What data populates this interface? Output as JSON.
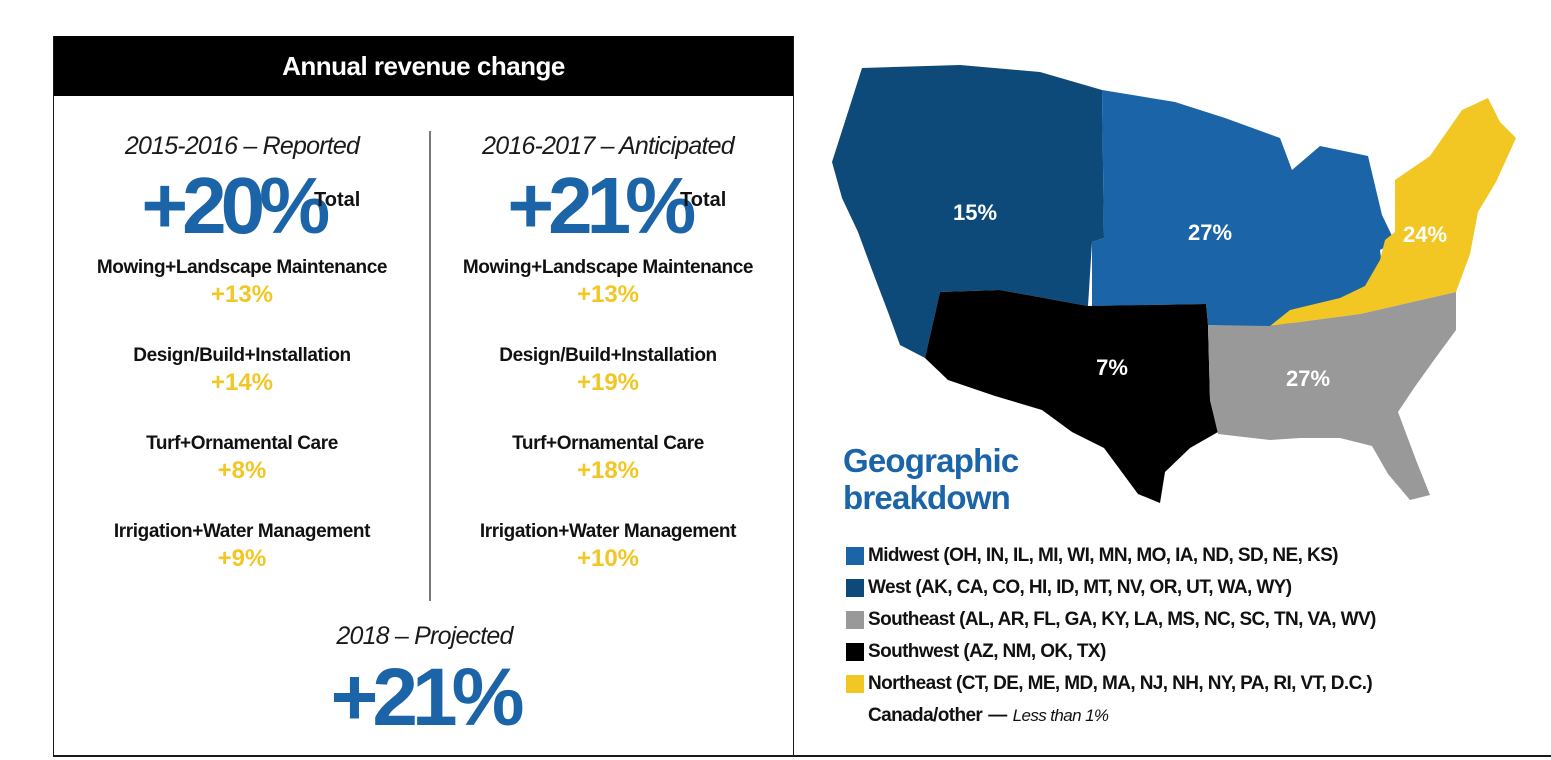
{
  "revenue_panel": {
    "title": "Annual revenue change",
    "reported": {
      "period": "2015-2016 – Reported",
      "total_value": "+20%",
      "total_label": "Total",
      "categories": [
        {
          "name": "Mowing+Landscape Maintenance",
          "value": "+13%"
        },
        {
          "name": "Design/Build+Installation",
          "value": "+14%"
        },
        {
          "name": "Turf+Ornamental Care",
          "value": "+8%"
        },
        {
          "name": "Irrigation+Water Management",
          "value": "+9%"
        }
      ]
    },
    "anticipated": {
      "period": "2016-2017 – Anticipated",
      "total_value": "+21%",
      "total_label": "Total",
      "categories": [
        {
          "name": "Mowing+Landscape Maintenance",
          "value": "+13%"
        },
        {
          "name": "Design/Build+Installation",
          "value": "+19%"
        },
        {
          "name": "Turf+Ornamental Care",
          "value": "+18%"
        },
        {
          "name": "Irrigation+Water Management",
          "value": "+10%"
        }
      ]
    },
    "projected": {
      "period": "2018 – Projected",
      "value": "+21%"
    }
  },
  "geo": {
    "title_line1": "Geographic",
    "title_line2": "breakdown",
    "regions": {
      "west": "15%",
      "midwest": "27%",
      "northeast": "24%",
      "southwest": "7%",
      "southeast": "27%"
    },
    "legend": [
      {
        "label": "Midwest (OH, IN, IL, MI, WI, MN, MO, IA, ND, SD, NE, KS)",
        "color": "#1b64a8"
      },
      {
        "label": "West (AK, CA, CO, HI, ID, MT, NV, OR, UT, WA, WY)",
        "color": "#0d4a7a"
      },
      {
        "label": "Southeast (AL, AR, FL, GA, KY, LA, MS, NC, SC, TN, VA, WV)",
        "color": "#999999"
      },
      {
        "label": "Southwest (AZ, NM, OK, TX)",
        "color": "#000000"
      },
      {
        "label": "Northeast (CT, DE, ME, MD, MA, NJ, NH, NY, PA, RI, VT, D.C.)",
        "color": "#f2c623"
      }
    ],
    "other_label": "Canada/other",
    "other_dash": "—",
    "other_value": "Less than 1%"
  },
  "colors": {
    "accent_blue": "#1b64a8",
    "accent_yellow": "#f2c623",
    "west_blue": "#0d4a7a",
    "southeast_gray": "#999999"
  }
}
